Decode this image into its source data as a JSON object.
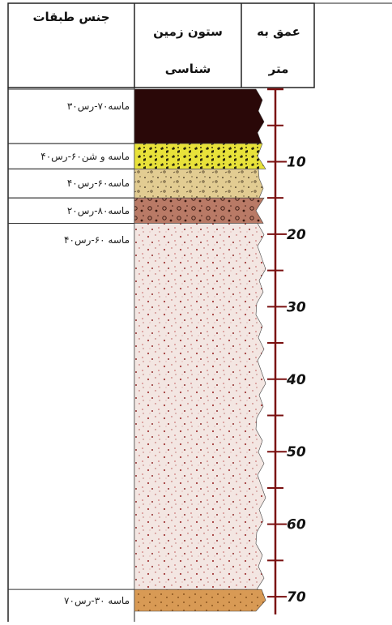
{
  "headers": {
    "layers": "جنس طبقات",
    "column_line1": "ستون زمین",
    "column_line2": "شناسی",
    "depth_line1": "عمق به",
    "depth_line2": "متر"
  },
  "layers": [
    {
      "label": "ماسه۷۰-رس۳۰",
      "top": 0,
      "bottom": 7.5,
      "color": "#2a0808",
      "pattern": "solid"
    },
    {
      "label": "ماسه و شن۶۰-رس۴۰",
      "top": 7.5,
      "bottom": 11,
      "color": "#e8e23a",
      "pattern": "gravel"
    },
    {
      "label": "ماسه۶۰-رس۴۰",
      "top": 11,
      "bottom": 15,
      "color": "#e2cc92",
      "pattern": "sandy"
    },
    {
      "label": "ماسه۸۰-رس۲۰",
      "top": 15,
      "bottom": 18.5,
      "color": "#b97a66",
      "pattern": "pebbly"
    },
    {
      "label": "ماسه ۶۰-رس۴۰",
      "top": 18.5,
      "bottom": 69,
      "color": "#f3e6e2",
      "pattern": "speckled"
    },
    {
      "label": "ماسه ۳۰-رس۷۰",
      "top": 69,
      "bottom": 72,
      "color": "#d89a55",
      "pattern": "coarse"
    }
  ],
  "depth_axis": {
    "unit": "متر",
    "min": 0,
    "max": 72,
    "major_ticks": [
      10,
      20,
      30,
      40,
      50,
      60,
      70
    ],
    "minor_step": 5,
    "color": "#7a1010"
  }
}
